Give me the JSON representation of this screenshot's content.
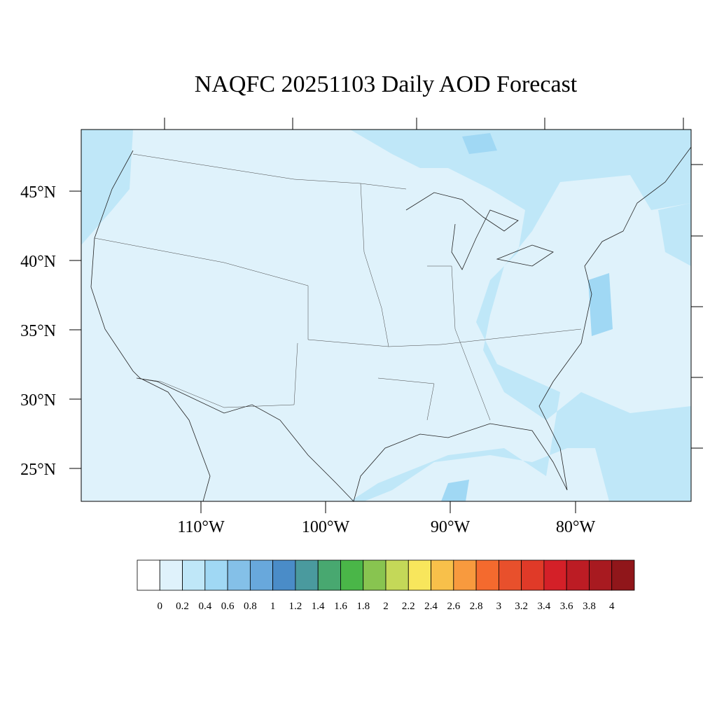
{
  "title": "NAQFC 20251103 Daily AOD Forecast",
  "lat_labels": [
    "45°N",
    "40°N",
    "35°N",
    "30°N",
    "25°N"
  ],
  "lon_labels": [
    "110°W",
    "100°W",
    "90°W",
    "80°W"
  ],
  "colorbar": {
    "colors": [
      "#ffffff",
      "#dff2fb",
      "#bfe7f8",
      "#a0d8f4",
      "#84c0e8",
      "#68a8dc",
      "#4a8cc8",
      "#4a9a9e",
      "#48a870",
      "#4ab648",
      "#88c450",
      "#c4d858",
      "#f8e65c",
      "#f8c04a",
      "#f89a3e",
      "#f46a2e",
      "#e8502c",
      "#e03a28",
      "#d42028",
      "#bc1c24",
      "#a81a20",
      "#90161a"
    ],
    "labels": [
      "0",
      "0.2",
      "0.4",
      "0.6",
      "0.8",
      "1",
      "1.2",
      "1.4",
      "1.6",
      "1.8",
      "2",
      "2.2",
      "2.4",
      "2.6",
      "2.8",
      "3",
      "3.2",
      "3.4",
      "3.6",
      "3.8",
      "4"
    ]
  }
}
